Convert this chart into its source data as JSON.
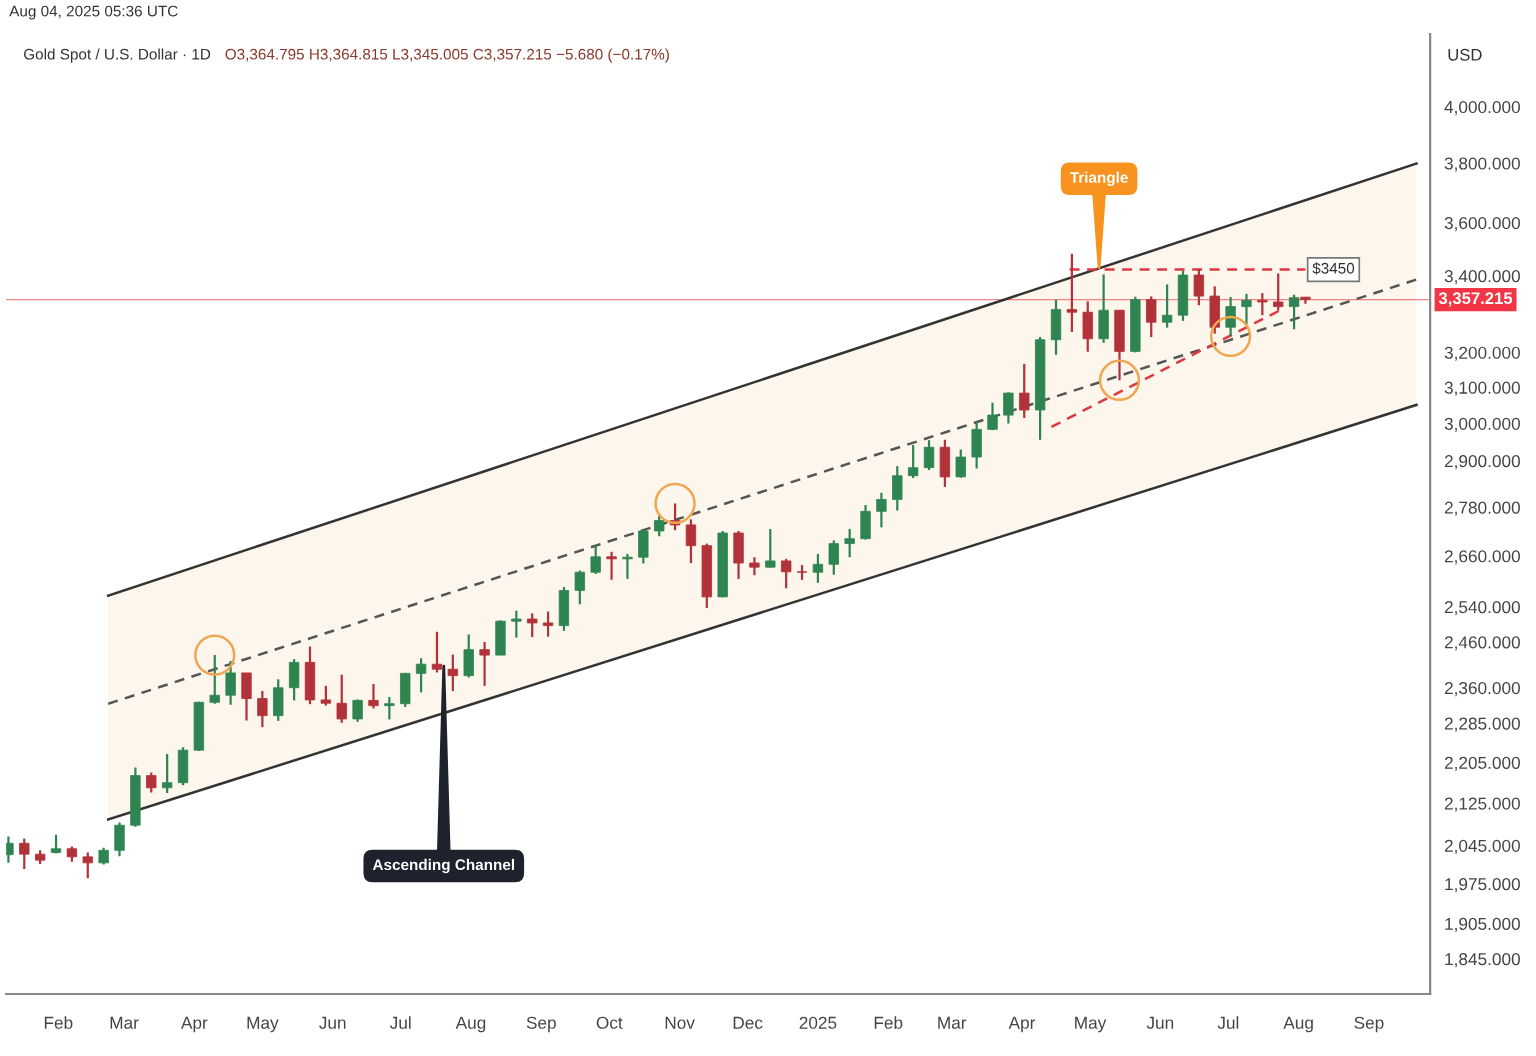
{
  "chart_data": {
    "type": "candlestick",
    "title": "Gold Spot / U.S. Dollar · 1D",
    "subtitle": "O3,364.795 H3,364.815 L3,345.005 C3,357.215 −5.680 (−0.17%)",
    "ylabel": "USD",
    "log": true,
    "grid": false,
    "x": [
      "2024-01-10",
      "2024-01-17",
      "2024-01-24",
      "2024-01-31",
      "2024-02-07",
      "2024-02-14",
      "2024-02-21",
      "2024-02-28",
      "2024-03-06",
      "2024-03-13",
      "2024-03-20",
      "2024-03-27",
      "2024-04-03",
      "2024-04-10",
      "2024-04-17",
      "2024-04-24",
      "2024-05-01",
      "2024-05-08",
      "2024-05-15",
      "2024-05-22",
      "2024-05-29",
      "2024-06-05",
      "2024-06-12",
      "2024-06-19",
      "2024-06-26",
      "2024-07-03",
      "2024-07-10",
      "2024-07-17",
      "2024-07-24",
      "2024-07-31",
      "2024-08-07",
      "2024-08-14",
      "2024-08-21",
      "2024-08-28",
      "2024-09-04",
      "2024-09-11",
      "2024-09-18",
      "2024-09-25",
      "2024-10-02",
      "2024-10-09",
      "2024-10-16",
      "2024-10-23",
      "2024-10-30",
      "2024-11-06",
      "2024-11-13",
      "2024-11-20",
      "2024-11-27",
      "2024-12-04",
      "2024-12-11",
      "2024-12-18",
      "2024-12-25",
      "2025-01-01",
      "2025-01-08",
      "2025-01-15",
      "2025-01-22",
      "2025-01-29",
      "2025-02-05",
      "2025-02-12",
      "2025-02-19",
      "2025-02-26",
      "2025-03-05",
      "2025-03-12",
      "2025-03-19",
      "2025-03-26",
      "2025-04-02",
      "2025-04-09",
      "2025-04-16",
      "2025-04-23",
      "2025-04-30",
      "2025-05-07",
      "2025-05-14",
      "2025-05-21",
      "2025-05-28",
      "2025-06-04",
      "2025-06-11",
      "2025-06-18",
      "2025-06-25",
      "2025-07-02",
      "2025-07-09",
      "2025-07-16",
      "2025-07-23",
      "2025-07-30",
      "2025-08-04"
    ],
    "ohlc": [
      [
        2028,
        2062,
        2013,
        2049
      ],
      [
        2049,
        2058,
        2002,
        2029
      ],
      [
        2029,
        2036,
        2011,
        2018
      ],
      [
        2032,
        2065,
        2030,
        2039
      ],
      [
        2039,
        2043,
        2015,
        2024
      ],
      [
        2024,
        2032,
        1985,
        2013
      ],
      [
        2013,
        2041,
        2010,
        2036
      ],
      [
        2036,
        2088,
        2025,
        2083
      ],
      [
        2083,
        2195,
        2080,
        2179
      ],
      [
        2179,
        2185,
        2146,
        2155
      ],
      [
        2155,
        2222,
        2145,
        2165
      ],
      [
        2165,
        2236,
        2160,
        2230
      ],
      [
        2230,
        2330,
        2228,
        2329
      ],
      [
        2329,
        2431,
        2326,
        2344
      ],
      [
        2344,
        2418,
        2324,
        2392
      ],
      [
        2392,
        2392,
        2291,
        2337
      ],
      [
        2337,
        2353,
        2277,
        2301
      ],
      [
        2301,
        2378,
        2290,
        2360
      ],
      [
        2360,
        2422,
        2333,
        2415
      ],
      [
        2415,
        2450,
        2325,
        2334
      ],
      [
        2334,
        2364,
        2322,
        2327
      ],
      [
        2327,
        2388,
        2286,
        2294
      ],
      [
        2294,
        2335,
        2288,
        2333
      ],
      [
        2333,
        2368,
        2316,
        2322
      ],
      [
        2322,
        2340,
        2293,
        2326
      ],
      [
        2326,
        2392,
        2319,
        2391
      ],
      [
        2391,
        2424,
        2350,
        2411
      ],
      [
        2411,
        2483,
        2393,
        2400
      ],
      [
        2400,
        2432,
        2353,
        2386
      ],
      [
        2386,
        2477,
        2382,
        2443
      ],
      [
        2443,
        2460,
        2364,
        2431
      ],
      [
        2431,
        2509,
        2431,
        2507
      ],
      [
        2507,
        2531,
        2470,
        2512
      ],
      [
        2512,
        2525,
        2471,
        2503
      ],
      [
        2503,
        2529,
        2472,
        2497
      ],
      [
        2497,
        2586,
        2485,
        2578
      ],
      [
        2578,
        2625,
        2546,
        2621
      ],
      [
        2621,
        2685,
        2617,
        2658
      ],
      [
        2658,
        2670,
        2603,
        2653
      ],
      [
        2653,
        2665,
        2605,
        2657
      ],
      [
        2657,
        2725,
        2642,
        2721
      ],
      [
        2721,
        2758,
        2708,
        2747
      ],
      [
        2747,
        2790,
        2723,
        2736
      ],
      [
        2736,
        2750,
        2643,
        2685
      ],
      [
        2685,
        2690,
        2537,
        2563
      ],
      [
        2563,
        2721,
        2562,
        2716
      ],
      [
        2716,
        2721,
        2605,
        2643
      ],
      [
        2643,
        2657,
        2614,
        2633
      ],
      [
        2633,
        2726,
        2632,
        2648
      ],
      [
        2648,
        2653,
        2583,
        2622
      ],
      [
        2622,
        2638,
        2603,
        2621
      ],
      [
        2621,
        2665,
        2596,
        2640
      ],
      [
        2640,
        2698,
        2615,
        2690
      ],
      [
        2690,
        2726,
        2657,
        2702
      ],
      [
        2702,
        2786,
        2700,
        2770
      ],
      [
        2770,
        2817,
        2730,
        2800
      ],
      [
        2800,
        2886,
        2772,
        2861
      ],
      [
        2861,
        2942,
        2855,
        2882
      ],
      [
        2882,
        2955,
        2876,
        2936
      ],
      [
        2936,
        2956,
        2832,
        2858
      ],
      [
        2858,
        2930,
        2856,
        2910
      ],
      [
        2910,
        3004,
        2880,
        2984
      ],
      [
        2984,
        3057,
        2982,
        3023
      ],
      [
        3023,
        3086,
        3000,
        3084
      ],
      [
        3084,
        3167,
        3015,
        3037
      ],
      [
        3037,
        3245,
        2956,
        3237
      ],
      [
        3237,
        3357,
        3193,
        3327
      ],
      [
        3327,
        3500,
        3260,
        3319
      ],
      [
        3319,
        3352,
        3202,
        3240
      ],
      [
        3240,
        3435,
        3228,
        3325
      ],
      [
        3325,
        3325,
        3120,
        3203
      ],
      [
        3203,
        3366,
        3200,
        3357
      ],
      [
        3357,
        3367,
        3245,
        3289
      ],
      [
        3289,
        3404,
        3273,
        3310
      ],
      [
        3310,
        3446,
        3293,
        3433
      ],
      [
        3433,
        3452,
        3340,
        3368
      ],
      [
        3368,
        3398,
        3255,
        3274
      ],
      [
        3274,
        3365,
        3247,
        3336
      ],
      [
        3336,
        3375,
        3283,
        3355
      ],
      [
        3355,
        3377,
        3310,
        3350
      ],
      [
        3350,
        3438,
        3324,
        3336
      ],
      [
        3336,
        3372,
        3268,
        3363
      ],
      [
        3364.795,
        3364.815,
        3345.005,
        3357.215
      ]
    ],
    "colors": [
      "#2f8552",
      "#b2323a",
      "#b2323a",
      "#2f8552",
      "#b2323a",
      "#b2323a",
      "#2f8552",
      "#2f8552",
      "#2f8552",
      "#b2323a",
      "#2f8552",
      "#2f8552",
      "#2f8552",
      "#2f8552",
      "#2f8552",
      "#b2323a",
      "#b2323a",
      "#2f8552",
      "#2f8552",
      "#b2323a",
      "#b2323a",
      "#b2323a",
      "#2f8552",
      "#b2323a",
      "#2f8552",
      "#2f8552",
      "#2f8552",
      "#b2323a",
      "#b2323a",
      "#2f8552",
      "#b2323a",
      "#2f8552",
      "#2f8552",
      "#b2323a",
      "#b2323a",
      "#2f8552",
      "#2f8552",
      "#2f8552",
      "#b2323a",
      "#2f8552",
      "#2f8552",
      "#2f8552",
      "#b2323a",
      "#b2323a",
      "#b2323a",
      "#2f8552",
      "#b2323a",
      "#b2323a",
      "#2f8552",
      "#b2323a",
      "#b2323a",
      "#2f8552",
      "#2f8552",
      "#2f8552",
      "#2f8552",
      "#2f8552",
      "#2f8552",
      "#2f8552",
      "#2f8552",
      "#b2323a",
      "#2f8552",
      "#2f8552",
      "#2f8552",
      "#2f8552",
      "#b2323a",
      "#2f8552",
      "#2f8552",
      "#b2323a",
      "#b2323a",
      "#2f8552",
      "#b2323a",
      "#2f8552",
      "#b2323a",
      "#2f8552",
      "#2f8552",
      "#b2323a",
      "#b2323a",
      "#2f8552",
      "#2f8552",
      "#b2323a",
      "#b2323a",
      "#2f8552",
      "#b2323a"
    ],
    "series": [
      {
        "type": "line",
        "x": [
          "2024-02-23",
          "2025-09-22"
        ],
        "values": [
          2326,
          3419
        ],
        "lower": [
          2094,
          3051
        ],
        "upper": [
          2566,
          3799
        ],
        "color": "#555555",
        "line_style": "dashed"
      },
      {
        "type": "line",
        "x": [
          "2024-02-23",
          "2025-09-22"
        ],
        "values": [
          2566,
          3799
        ],
        "color": "#333333",
        "line_style": "solid"
      },
      {
        "type": "line",
        "x": [
          "2024-02-23",
          "2025-09-22"
        ],
        "values": [
          2094,
          3051
        ],
        "color": "#333333",
        "line_style": "solid"
      },
      {
        "type": "line",
        "x": [
          "2025-04-22",
          "2025-08-04"
        ],
        "values": [
          3450,
          3450
        ],
        "color": "#e0383e",
        "line_style": "dashed"
      },
      {
        "type": "line",
        "x": [
          "2025-04-14",
          "2025-07-25"
        ],
        "values": [
          2991,
          3329
        ],
        "color": "#e0383e",
        "line_style": "dashed"
      }
    ],
    "ref_lines": [
      {
        "axis": "y",
        "value": 3357.215,
        "label": "3,357.215",
        "color": "#f23645"
      }
    ],
    "annotations": [
      "Aug 04, 2025 05:36 UTC",
      {
        "text": "Triangle",
        "x": "2025-05-05",
        "y": 3456
      },
      {
        "text": "Ascending Channel",
        "x": "2024-07-20",
        "y": 2407
      },
      {
        "text": "$3450",
        "x": "2025-08-07",
        "y": 3450
      }
    ],
    "xlim": [
      "2024-01-09",
      "2025-09-28"
    ],
    "xticks": [
      {
        "value": "2024-02-01",
        "label": "Feb"
      },
      {
        "value": "2024-03-01",
        "label": "Mar"
      },
      {
        "value": "2024-04-01",
        "label": "Apr"
      },
      {
        "value": "2024-05-01",
        "label": "May"
      },
      {
        "value": "2024-06-01",
        "label": "Jun"
      },
      {
        "value": "2024-07-01",
        "label": "Jul"
      },
      {
        "value": "2024-08-01",
        "label": "Aug"
      },
      {
        "value": "2024-09-01",
        "label": "Sep"
      },
      {
        "value": "2024-10-01",
        "label": "Oct"
      },
      {
        "value": "2024-11-01",
        "label": "Nov"
      },
      {
        "value": "2024-12-01",
        "label": "Dec"
      },
      {
        "value": "2025-01-01",
        "label": "2025"
      },
      {
        "value": "2025-02-01",
        "label": "Feb"
      },
      {
        "value": "2025-03-01",
        "label": "Mar"
      },
      {
        "value": "2025-04-01",
        "label": "Apr"
      },
      {
        "value": "2025-05-01",
        "label": "May"
      },
      {
        "value": "2025-06-01",
        "label": "Jun"
      },
      {
        "value": "2025-07-01",
        "label": "Jul"
      },
      {
        "value": "2025-08-01",
        "label": "Aug"
      },
      {
        "value": "2025-09-01",
        "label": "Sep"
      }
    ],
    "ylim": [
      1787,
      4273
    ],
    "yticks": [
      {
        "value": 1845,
        "label": "1,845.000"
      },
      {
        "value": 1905,
        "label": "1,905.000"
      },
      {
        "value": 1975,
        "label": "1,975.000"
      },
      {
        "value": 2045,
        "label": "2,045.000"
      },
      {
        "value": 2125,
        "label": "2,125.000"
      },
      {
        "value": 2205,
        "label": "2,205.000"
      },
      {
        "value": 2285,
        "label": "2,285.000"
      },
      {
        "value": 2360,
        "label": "2,360.000"
      },
      {
        "value": 2460,
        "label": "2,460.000"
      },
      {
        "value": 2540,
        "label": "2,540.000"
      },
      {
        "value": 2660,
        "label": "2,660.000"
      },
      {
        "value": 2780,
        "label": "2,780.000"
      },
      {
        "value": 2900,
        "label": "2,900.000"
      },
      {
        "value": 3000,
        "label": "3,000.000"
      },
      {
        "value": 3100,
        "label": "3,100.000"
      },
      {
        "value": 3200,
        "label": "3,200.000"
      },
      {
        "value": 3400,
        "label": "3,400.000"
      },
      {
        "value": 3600,
        "label": "3,600.000"
      },
      {
        "value": 3800,
        "label": "3,800.000"
      },
      {
        "value": 4000,
        "label": "4,000.000"
      }
    ]
  }
}
